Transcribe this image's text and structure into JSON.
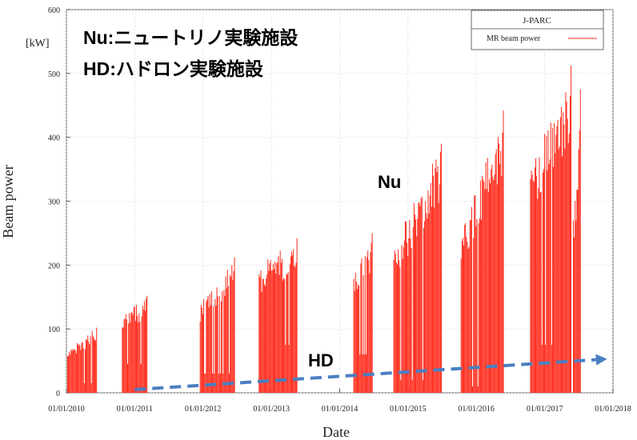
{
  "chart_data": {
    "type": "bar",
    "xlabel": "Date",
    "ylabel": "Beam power",
    "y_unit": "[kW]",
    "ylim": [
      0,
      600
    ],
    "y_ticks": [
      0,
      100,
      200,
      300,
      400,
      500,
      600
    ],
    "xlim": [
      "2010-01-01",
      "2018-01-01"
    ],
    "x_ticks": [
      "01/01/2010",
      "01/01/2011",
      "01/01/2012",
      "01/01/2013",
      "01/01/2014",
      "01/01/2015",
      "01/01/2016",
      "01/01/2017",
      "01/01/2018"
    ],
    "legend": {
      "title": "J-PARC",
      "entries": [
        {
          "label": "MR beam power",
          "color": "#ff2a1a"
        }
      ],
      "position": "top-right"
    },
    "bar_color": "#ff2a1a",
    "annotations": {
      "line1": "Nu:ニュートリノ実験施設",
      "line2": "HD:ハドロン実験施設",
      "nu_label": "Nu",
      "hd_label": "HD"
    },
    "hd_trend": {
      "color": "#4a7fc1",
      "start": {
        "x": "2011-01-01",
        "y": 5
      },
      "end": {
        "x": "2017-12-01",
        "y": 53
      }
    },
    "runs": [
      {
        "start": "2010-01-05",
        "end": "2010-06-10",
        "min": 30,
        "max": 102
      },
      {
        "start": "2010-10-25",
        "end": "2011-03-10",
        "min": 90,
        "max": 152
      },
      {
        "start": "2011-12-15",
        "end": "2012-06-20",
        "min": 60,
        "max": 212
      },
      {
        "start": "2012-10-25",
        "end": "2013-05-20",
        "min": 150,
        "max": 242
      },
      {
        "start": "2014-03-15",
        "end": "2014-06-25",
        "min": 120,
        "max": 250
      },
      {
        "start": "2014-10-15",
        "end": "2015-06-30",
        "min": 40,
        "max": 390
      },
      {
        "start": "2015-10-10",
        "end": "2016-05-25",
        "min": 20,
        "max": 442
      },
      {
        "start": "2016-10-15",
        "end": "2017-05-20",
        "min": 150,
        "max": 512
      },
      {
        "start": "2017-06-01",
        "end": "2017-07-10",
        "min": 30,
        "max": 475
      }
    ]
  }
}
